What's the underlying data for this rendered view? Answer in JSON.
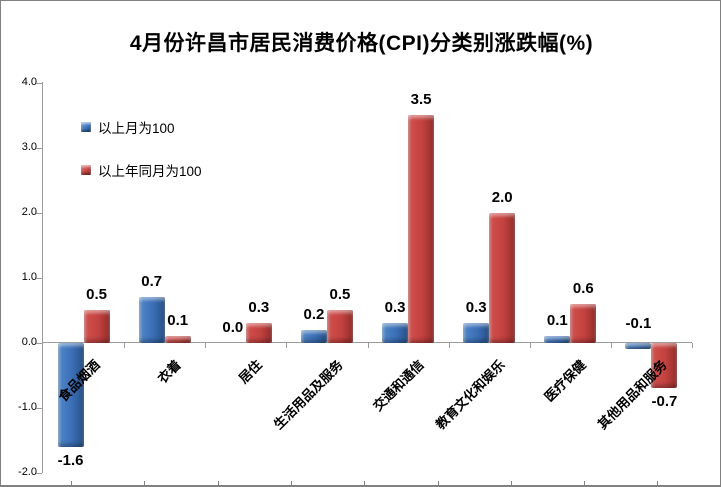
{
  "title": "4月份许昌市居民消费价格(CPI)分类别涨跌幅(%)",
  "legend": [
    {
      "label": "以上月为100",
      "color": "#3A6EB5"
    },
    {
      "label": "以上年同月为100",
      "color": "#C24240"
    }
  ],
  "colors": {
    "series_blue": "#3A6EB5",
    "series_red": "#C24240",
    "axis_gray": "#9b9b9b",
    "ruler_gray": "#808080"
  },
  "chart_data": {
    "type": "bar",
    "title": "4月份许昌市居民消费价格(CPI)分类别涨跌幅(%)",
    "categories": [
      "食品烟酒",
      "衣着",
      "居住",
      "生活用品及服务",
      "交通和通信",
      "教育文化和娱乐",
      "医疗保健",
      "其他用品和服务"
    ],
    "series": [
      {
        "name": "以上月为100",
        "color": "#3A6EB5",
        "values": [
          -1.6,
          0.7,
          0.0,
          0.2,
          0.3,
          0.3,
          0.1,
          -0.1
        ],
        "label_positions": [
          "below",
          "above",
          "above",
          "above",
          "above",
          "above",
          "above",
          "above-axis"
        ]
      },
      {
        "name": "以上年同月为100",
        "color": "#C24240",
        "values": [
          0.5,
          0.1,
          0.3,
          0.5,
          3.5,
          2.0,
          0.6,
          -0.7
        ],
        "label_positions": [
          "above",
          "above",
          "above",
          "above",
          "above",
          "above",
          "above",
          "below"
        ]
      }
    ],
    "xlabel": "",
    "ylabel": "",
    "ylim": [
      -2.0,
      4.0
    ],
    "yticks": [
      4.0,
      3.0,
      2.0,
      1.0,
      0.0,
      -1.0,
      -2.0
    ],
    "ytick_labels": [
      "4.0",
      "3.0",
      "2.0",
      "1.0",
      "0.0",
      "-1.0",
      "-2.0"
    ],
    "grid": false,
    "legend_position": "upper-left-inside",
    "bar_label_format": "one-decimal"
  }
}
